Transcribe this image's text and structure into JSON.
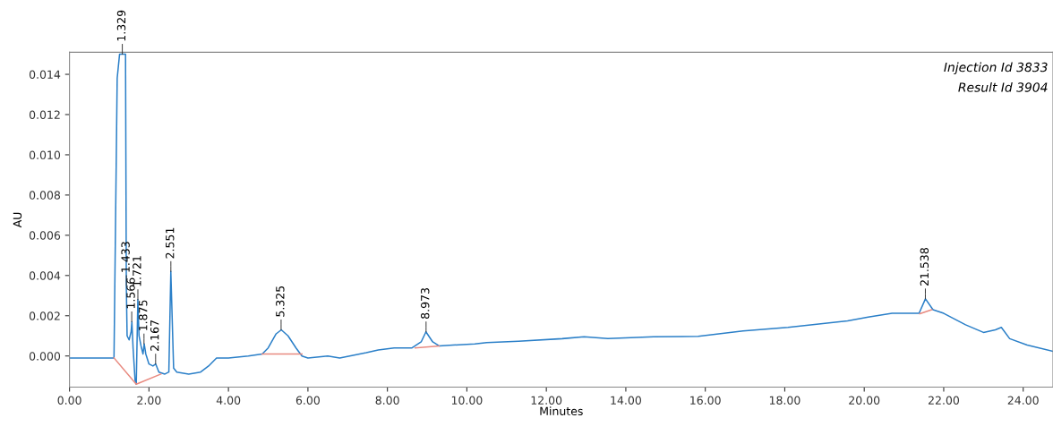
{
  "chart_data": {
    "type": "line",
    "xlabel": "Minutes",
    "ylabel": "AU",
    "xlim": [
      0,
      24.75
    ],
    "ylim": [
      -0.00155,
      0.0151
    ],
    "xticks": [
      {
        "value": 0,
        "label": "0.00"
      },
      {
        "value": 2,
        "label": "2.00"
      },
      {
        "value": 4,
        "label": "4.00"
      },
      {
        "value": 6,
        "label": "6.00"
      },
      {
        "value": 8,
        "label": "8.00"
      },
      {
        "value": 10,
        "label": "10.00"
      },
      {
        "value": 12,
        "label": "12.00"
      },
      {
        "value": 14,
        "label": "14.00"
      },
      {
        "value": 16,
        "label": "16.00"
      },
      {
        "value": 18,
        "label": "18.00"
      },
      {
        "value": 20,
        "label": "20.00"
      },
      {
        "value": 22,
        "label": "22.00"
      },
      {
        "value": 24,
        "label": "24.00"
      }
    ],
    "yticks": [
      {
        "value": 0,
        "label": "0.000"
      },
      {
        "value": 0.002,
        "label": "0.002"
      },
      {
        "value": 0.004,
        "label": "0.004"
      },
      {
        "value": 0.006,
        "label": "0.006"
      },
      {
        "value": 0.008,
        "label": "0.008"
      },
      {
        "value": 0.01,
        "label": "0.010"
      },
      {
        "value": 0.012,
        "label": "0.012"
      },
      {
        "value": 0.014,
        "label": "0.014"
      }
    ],
    "grid": false,
    "marker": "none",
    "line_style": "solid",
    "series": [
      {
        "color": "#2a7fc8",
        "x": [
          0,
          0.5,
          1.0,
          1.12,
          1.2,
          1.26,
          1.41,
          1.43,
          1.45,
          1.5,
          1.55,
          1.57,
          1.6,
          1.65,
          1.68,
          1.72,
          1.75,
          1.8,
          1.85,
          1.88,
          1.92,
          2.0,
          2.1,
          2.17,
          2.25,
          2.4,
          2.5,
          2.55,
          2.62,
          2.7,
          3.0,
          3.3,
          3.5,
          3.7,
          4.0,
          4.5,
          4.85,
          5.0,
          5.2,
          5.33,
          5.5,
          5.7,
          5.85,
          6.0,
          6.5,
          6.8,
          7.47,
          7.77,
          8.17,
          8.62,
          8.85,
          8.97,
          9.14,
          9.3,
          10.2,
          10.5,
          11.3,
          12.4,
          12.95,
          13.55,
          14.7,
          15.82,
          16.95,
          18.08,
          19.58,
          20.1,
          20.7,
          21.38,
          21.54,
          21.73,
          22.0,
          22.55,
          23.0,
          23.3,
          23.45,
          23.66,
          24.1,
          24.75
        ],
        "values": [
          -0.0001,
          -0.0001,
          -0.0001,
          -0.0001,
          0.0138,
          0.015,
          0.015,
          0.0035,
          0.001,
          0.0008,
          0.0012,
          0.0017,
          0.0004,
          -0.0012,
          -0.0014,
          0.0028,
          0.001,
          0.0005,
          0.0001,
          0.0006,
          0.0001,
          -0.0004,
          -0.0005,
          -0.0004,
          -0.0008,
          -0.0009,
          -0.0008,
          0.0042,
          -0.0006,
          -0.0008,
          -0.0009,
          -0.0008,
          -0.0005,
          -0.0001,
          -0.0001,
          0.0,
          0.0001,
          0.0004,
          0.0011,
          0.0013,
          0.001,
          0.0004,
          0.0,
          -0.0001,
          0.0,
          -0.0001,
          0.00016,
          0.0003,
          0.0004,
          0.0004,
          0.0007,
          0.0012,
          0.0007,
          0.0005,
          0.0006,
          0.00067,
          0.00073,
          0.00086,
          0.00095,
          0.00087,
          0.00095,
          0.00098,
          0.00124,
          0.00142,
          0.00174,
          0.00193,
          0.00212,
          0.00212,
          0.00284,
          0.0023,
          0.00212,
          0.00155,
          0.00117,
          0.0013,
          0.00142,
          0.00086,
          0.00054,
          0.00023
        ]
      },
      {
        "color": "#e88a80",
        "x": [
          1.12,
          1.68,
          2.3
        ],
        "values": [
          -0.0001,
          -0.0014,
          -0.0009
        ]
      },
      {
        "color": "#e88a80",
        "x": [
          4.85,
          5.85
        ],
        "values": [
          0.0001,
          0.0001
        ]
      },
      {
        "color": "#e88a80",
        "x": [
          8.7,
          9.3
        ],
        "values": [
          0.0004,
          0.0005
        ]
      },
      {
        "color": "#e88a80",
        "x": [
          21.4,
          21.7
        ],
        "values": [
          0.0021,
          0.0023
        ]
      }
    ],
    "annotations": [
      {
        "text": "1.329",
        "x": 1.329,
        "y": 0.015
      },
      {
        "text": "1.433",
        "x": 1.433,
        "y": 0.0035
      },
      {
        "text": "1.566",
        "x": 1.566,
        "y": 0.0017
      },
      {
        "text": "1.721",
        "x": 1.721,
        "y": 0.0028
      },
      {
        "text": "1.875",
        "x": 1.875,
        "y": 0.0006
      },
      {
        "text": "2.167",
        "x": 2.167,
        "y": -0.0004
      },
      {
        "text": "2.551",
        "x": 2.551,
        "y": 0.0042
      },
      {
        "text": "5.325",
        "x": 5.325,
        "y": 0.0013
      },
      {
        "text": "8.973",
        "x": 8.973,
        "y": 0.0012
      },
      {
        "text": "21.538",
        "x": 21.538,
        "y": 0.00284
      },
      "Injection Id 3833",
      "Result Id 3904"
    ]
  }
}
